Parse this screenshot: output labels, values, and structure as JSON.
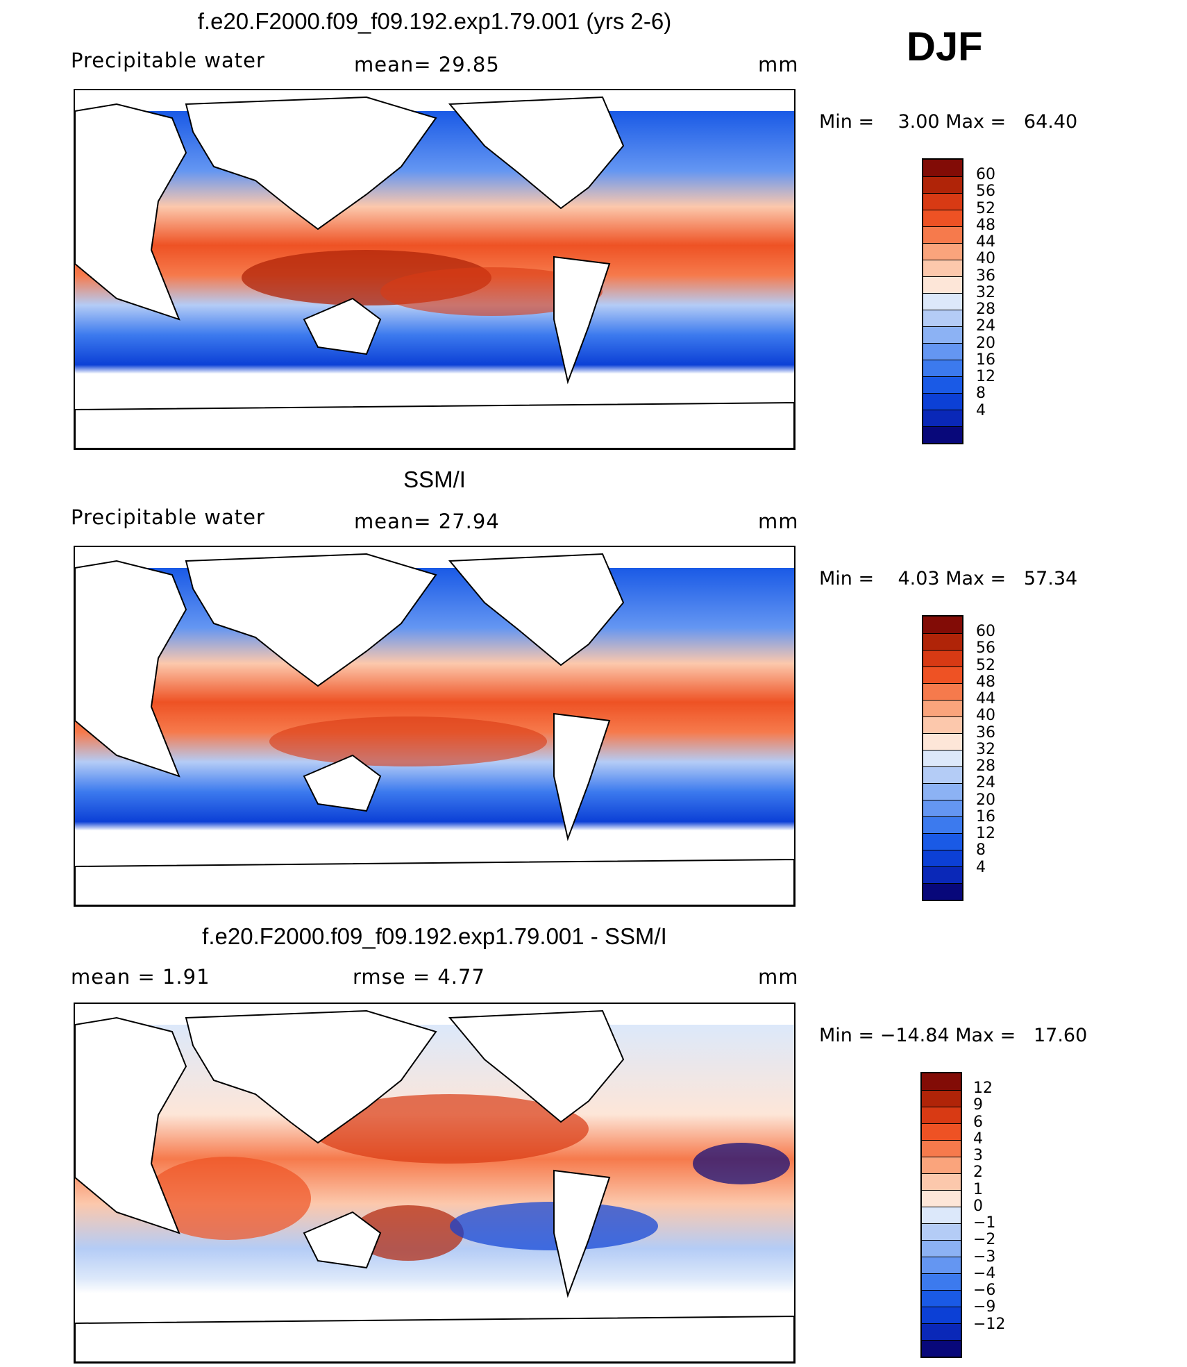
{
  "header": {
    "season": "DJF"
  },
  "colors": {
    "abs_scale": [
      "#08087a",
      "#0a28b8",
      "#0c40d6",
      "#1a5ae6",
      "#3c7aee",
      "#6496f2",
      "#8cb2f4",
      "#b4ccf6",
      "#dce8fa",
      "#fde6d8",
      "#fcc8ac",
      "#faa47c",
      "#f67a4c",
      "#ee5224",
      "#d83a14",
      "#b02408",
      "#820c06"
    ],
    "diff_scale": [
      "#08087a",
      "#0a28b8",
      "#0c40d6",
      "#1a5ae6",
      "#3c7aee",
      "#6496f2",
      "#8cb2f4",
      "#b4ccf6",
      "#dce8fa",
      "#fde6d8",
      "#fcc8ac",
      "#faa47c",
      "#f67a4c",
      "#ee5224",
      "#d83a14",
      "#b02408",
      "#820c06"
    ]
  },
  "panels": [
    {
      "title": "f.e20.F2000.f09_f09.192.exp1.79.001 (yrs 2-6)",
      "left_label": "Precipitable water",
      "mean_label": "mean=   29.85",
      "units": "mm",
      "minmax": "Min =    3.00 Max =   64.40",
      "colorbar_labels": [
        "60",
        "56",
        "52",
        "48",
        "44",
        "40",
        "36",
        "32",
        "28",
        "24",
        "20",
        "16",
        "12",
        "8",
        "4"
      ]
    },
    {
      "title": "SSM/I",
      "left_label": "Precipitable water",
      "mean_label": "mean=   27.94",
      "units": "mm",
      "minmax": "Min =    4.03 Max =   57.34",
      "colorbar_labels": [
        "60",
        "56",
        "52",
        "48",
        "44",
        "40",
        "36",
        "32",
        "28",
        "24",
        "20",
        "16",
        "12",
        "8",
        "4"
      ]
    },
    {
      "title": "f.e20.F2000.f09_f09.192.exp1.79.001 - SSM/I",
      "left_label": "mean =    1.91",
      "mean_label": "rmse =    4.77",
      "units": "mm",
      "minmax": "Min = −14.84 Max =   17.60",
      "colorbar_labels": [
        "12",
        "9",
        "6",
        "4",
        "3",
        "2",
        "1",
        "0",
        "−1",
        "−2",
        "−3",
        "−4",
        "−6",
        "−9",
        "−12"
      ]
    }
  ]
}
